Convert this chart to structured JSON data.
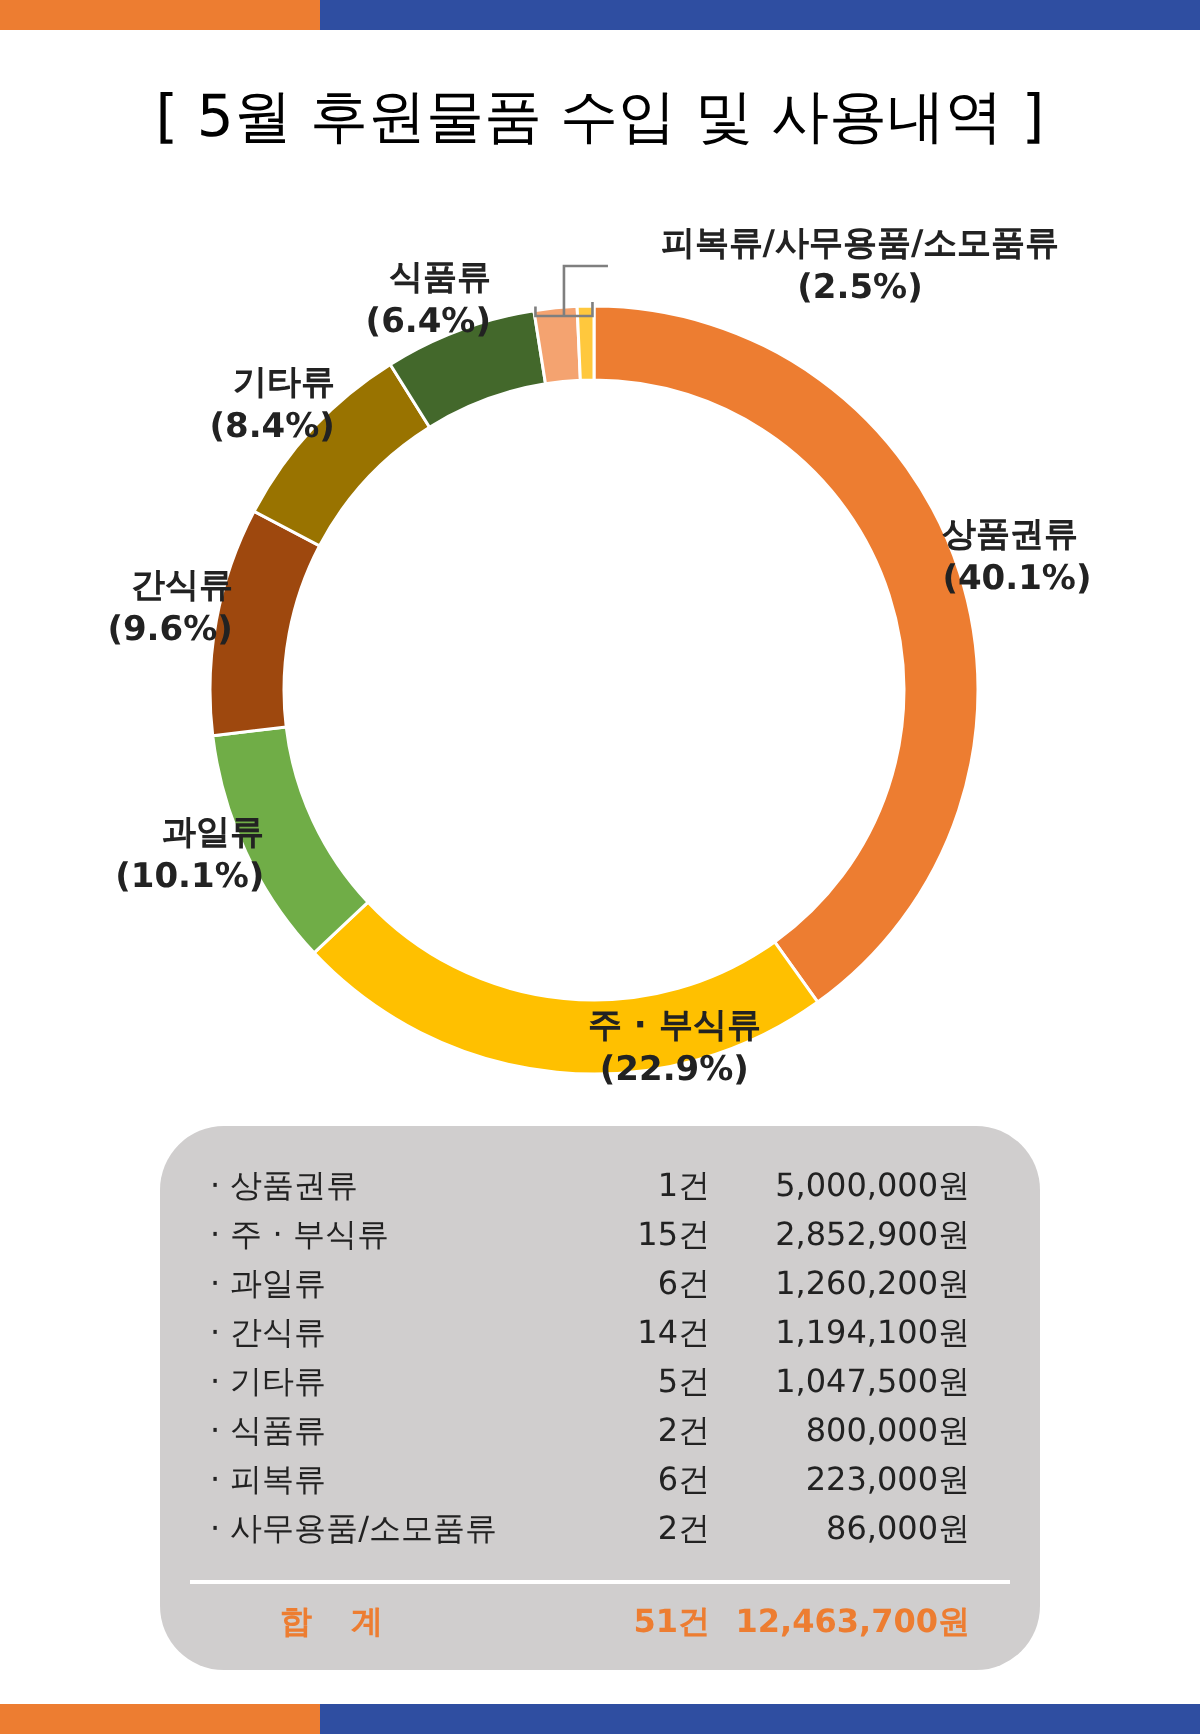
{
  "chart_data": [
    {
      "type": "donut",
      "title": "[ 5월 후원물품 수입 및 사용내역 ]",
      "categories": [
        "상품권류",
        "주 · 부식류",
        "과일류",
        "간식류",
        "기타류",
        "식품류",
        null,
        null
      ],
      "values": [
        40.1,
        22.9,
        10.1,
        9.6,
        8.4,
        6.4,
        1.8,
        0.7
      ],
      "colors": [
        "#ed7d31",
        "#ffc000",
        "#70ad47",
        "#9e480e",
        "#997300",
        "#43682b",
        "#f4a370",
        "#ffc83d"
      ],
      "value_labels": [
        "(40.1%)",
        "(22.9%)",
        "(10.1%)",
        "(9.6%)",
        "(8.4%)",
        "(6.4%)",
        null,
        null
      ],
      "annotations": [
        "피복류/사무용품/소모품류",
        "(2.5%)"
      ]
    },
    {
      "type": "other",
      "categories": [
        "· 상품권류",
        "· 주 · 부식류",
        "· 과일류",
        "· 간식류",
        "· 기타류",
        "· 식품류",
        "· 피복류",
        "· 사무용품/소모품류"
      ],
      "series": [
        {
          "values": [
            1,
            15,
            6,
            14,
            5,
            2,
            6,
            2
          ],
          "value_labels": [
            "1건",
            "15건",
            "6건",
            "14건",
            "5건",
            "2건",
            "6건",
            "2건"
          ]
        },
        {
          "values": [
            5000000,
            2852900,
            1260200,
            1194100,
            1047500,
            800000,
            223000,
            86000
          ],
          "value_labels": [
            "5,000,000원",
            "2,852,900원",
            "1,260,200원",
            "1,194,100원",
            "1,047,500원",
            "800,000원",
            "223,000원",
            "86,000원"
          ]
        }
      ],
      "annotations": [
        "합 계"
      ],
      "totals": [
        "51건",
        "12,463,700원"
      ]
    }
  ]
}
